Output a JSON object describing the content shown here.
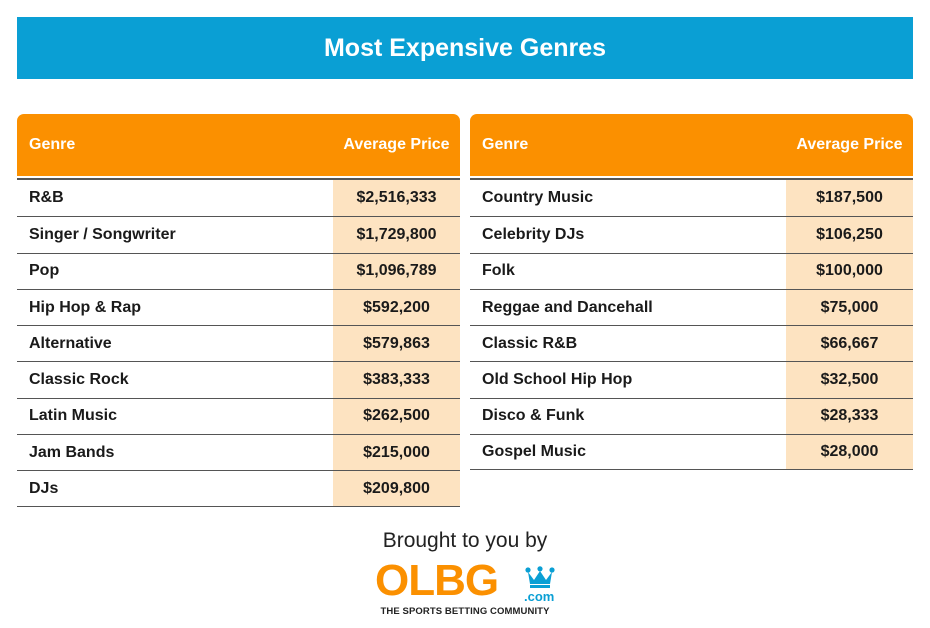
{
  "header": {
    "title": "Most Expensive Genres"
  },
  "columns": {
    "genre": "Genre",
    "price": "Average Price"
  },
  "tables": [
    {
      "rows": [
        {
          "genre": "R&B",
          "price": "$2,516,333"
        },
        {
          "genre": "Singer / Songwriter",
          "price": "$1,729,800"
        },
        {
          "genre": "Pop",
          "price": "$1,096,789"
        },
        {
          "genre": "Hip Hop & Rap",
          "price": "$592,200"
        },
        {
          "genre": "Alternative",
          "price": "$579,863"
        },
        {
          "genre": "Classic Rock",
          "price": "$383,333"
        },
        {
          "genre": "Latin Music",
          "price": "$262,500"
        },
        {
          "genre": "Jam Bands",
          "price": "$215,000"
        },
        {
          "genre": "DJs",
          "price": "$209,800"
        }
      ]
    },
    {
      "rows": [
        {
          "genre": "Country Music",
          "price": "$187,500"
        },
        {
          "genre": "Celebrity DJs",
          "price": "$106,250"
        },
        {
          "genre": "Folk",
          "price": "$100,000"
        },
        {
          "genre": "Reggae and Dancehall",
          "price": "$75,000"
        },
        {
          "genre": "Classic R&B",
          "price": "$66,667"
        },
        {
          "genre": "Old School Hip Hop",
          "price": "$32,500"
        },
        {
          "genre": "Disco & Funk",
          "price": "$28,333"
        },
        {
          "genre": "Gospel Music",
          "price": "$28,000"
        }
      ]
    }
  ],
  "footer": {
    "brought_by": "Brought to you by",
    "logo_text": "OLBG",
    "logo_domain": ".com",
    "tagline": "THE SPORTS BETTING COMMUNITY",
    "logo_icon": "crown-icon"
  },
  "colors": {
    "banner": "#0a9fd4",
    "header_orange": "#fb9000",
    "price_cell": "#fde3c1",
    "logo_blue": "#0a9fd4"
  }
}
